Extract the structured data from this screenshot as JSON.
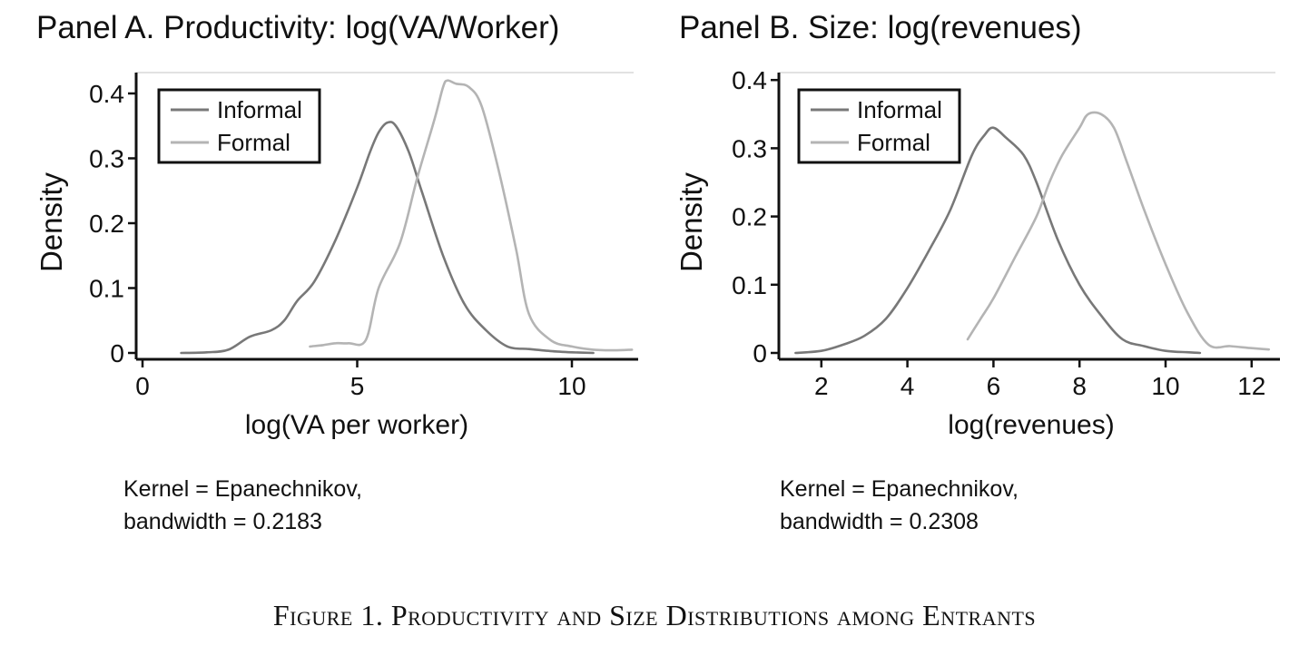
{
  "figure_caption": "Figure 1. Productivity and Size Distributions among Entrants",
  "colors": {
    "informal": "#787878",
    "formal": "#b4b4b4",
    "axis": "#111111",
    "legend_border": "#111111",
    "plot_bg": "#ffffff"
  },
  "chart_data": [
    {
      "type": "line",
      "title": "Panel A. Productivity: log(VA/Worker)",
      "xlabel": "log(VA per worker)",
      "ylabel": "Density",
      "xlim": [
        0,
        11.5
      ],
      "ylim": [
        0,
        0.42
      ],
      "xticks": [
        0,
        5,
        10
      ],
      "yticks": [
        0,
        0.1,
        0.2,
        0.3,
        0.4
      ],
      "xtick_labels": [
        "0",
        "5",
        "10"
      ],
      "ytick_labels": [
        "0",
        "0.1",
        "0.2",
        "0.3",
        "0.4"
      ],
      "legend": {
        "position": "top-left",
        "entries": [
          "Informal",
          "Formal"
        ]
      },
      "note": [
        "Kernel = Epanechnikov,",
        "bandwidth = 0.2183"
      ],
      "series": [
        {
          "name": "Informal",
          "color": "#787878",
          "x": [
            0.9,
            1.5,
            2.0,
            2.5,
            3.0,
            3.3,
            3.6,
            4.0,
            4.5,
            5.0,
            5.3,
            5.5,
            5.7,
            5.9,
            6.2,
            6.5,
            7.0,
            7.5,
            8.0,
            8.5,
            9.0,
            9.5,
            10.0,
            10.5
          ],
          "y": [
            0.0,
            0.001,
            0.005,
            0.025,
            0.035,
            0.05,
            0.08,
            0.11,
            0.175,
            0.255,
            0.31,
            0.34,
            0.355,
            0.35,
            0.31,
            0.25,
            0.15,
            0.075,
            0.035,
            0.01,
            0.006,
            0.003,
            0.001,
            0.0
          ]
        },
        {
          "name": "Formal",
          "color": "#b4b4b4",
          "x": [
            3.9,
            4.2,
            4.5,
            4.8,
            5.2,
            5.5,
            6.0,
            6.4,
            6.8,
            7.0,
            7.1,
            7.3,
            7.6,
            7.9,
            8.3,
            8.7,
            9.0,
            9.5,
            10.0,
            10.5,
            11.0,
            11.4
          ],
          "y": [
            0.01,
            0.012,
            0.015,
            0.015,
            0.02,
            0.1,
            0.17,
            0.27,
            0.36,
            0.41,
            0.42,
            0.415,
            0.41,
            0.38,
            0.28,
            0.16,
            0.06,
            0.02,
            0.01,
            0.005,
            0.004,
            0.005
          ]
        }
      ]
    },
    {
      "type": "line",
      "title": "Panel B. Size: log(revenues)",
      "xlabel": "log(revenues)",
      "ylabel": "Density",
      "xlim": [
        1.3,
        12.6
      ],
      "ylim": [
        0,
        0.41
      ],
      "xticks": [
        2,
        4,
        6,
        8,
        10,
        12
      ],
      "yticks": [
        0,
        0.1,
        0.2,
        0.3,
        0.4
      ],
      "xtick_labels": [
        "2",
        "4",
        "6",
        "8",
        "10",
        "12"
      ],
      "ytick_labels": [
        "0",
        "0.1",
        "0.2",
        "0.3",
        "0.4"
      ],
      "legend": {
        "position": "top-left",
        "entries": [
          "Informal",
          "Formal"
        ]
      },
      "note": [
        "Kernel = Epanechnikov,",
        "bandwidth = 0.2308"
      ],
      "series": [
        {
          "name": "Informal",
          "color": "#787878",
          "x": [
            1.4,
            2.0,
            2.5,
            3.0,
            3.5,
            4.0,
            4.5,
            5.0,
            5.5,
            5.8,
            6.0,
            6.3,
            6.7,
            7.0,
            7.5,
            8.0,
            8.5,
            9.0,
            9.5,
            10.0,
            10.5,
            10.8
          ],
          "y": [
            0.0,
            0.003,
            0.012,
            0.025,
            0.05,
            0.095,
            0.15,
            0.21,
            0.29,
            0.32,
            0.33,
            0.315,
            0.29,
            0.25,
            0.165,
            0.1,
            0.055,
            0.02,
            0.01,
            0.003,
            0.001,
            0.0
          ]
        },
        {
          "name": "Formal",
          "color": "#b4b4b4",
          "x": [
            5.4,
            5.7,
            6.0,
            6.5,
            7.0,
            7.3,
            7.6,
            8.0,
            8.2,
            8.5,
            8.8,
            9.1,
            9.5,
            10.0,
            10.5,
            11.0,
            11.5,
            12.0,
            12.4
          ],
          "y": [
            0.02,
            0.05,
            0.08,
            0.14,
            0.2,
            0.25,
            0.29,
            0.33,
            0.35,
            0.35,
            0.33,
            0.28,
            0.21,
            0.13,
            0.06,
            0.012,
            0.01,
            0.007,
            0.005
          ]
        }
      ]
    }
  ]
}
